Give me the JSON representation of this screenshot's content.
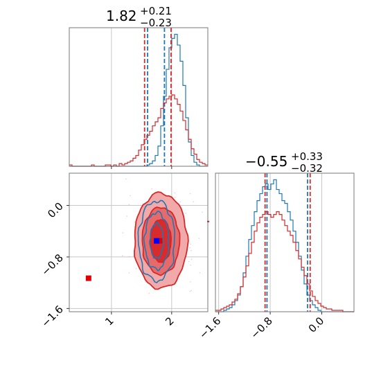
{
  "chart_data": [
    {
      "type": "histogram",
      "panel": "top-left",
      "title": {
        "main": "1.82",
        "sup": "+0.21",
        "sub": "−0.23"
      },
      "xlim": [
        0.3,
        2.6
      ],
      "x_ticks": [
        1,
        2
      ],
      "grid": true,
      "bins": {
        "start": 0.3,
        "width": 0.046
      },
      "series": [
        {
          "name": "blue",
          "color": "#1f77b4",
          "counts": [
            0,
            0,
            0,
            0,
            0,
            0,
            0,
            0,
            0,
            0,
            0,
            0,
            0,
            0,
            0,
            0,
            0,
            0,
            0,
            0,
            0,
            0,
            0,
            0,
            0,
            0,
            0,
            0,
            1,
            2,
            4,
            8,
            15,
            30,
            52,
            72,
            88,
            95,
            98,
            90,
            78,
            60,
            36,
            18,
            8,
            3,
            1,
            0,
            0,
            0
          ],
          "quantile_lines": [
            1.6,
            1.88
          ]
        },
        {
          "name": "red",
          "color": "#d62728",
          "counts": [
            1,
            0,
            0,
            0,
            0,
            0,
            0,
            0,
            1,
            0,
            0,
            0,
            0,
            1,
            1,
            0,
            1,
            0,
            2,
            1,
            2,
            3,
            4,
            6,
            8,
            12,
            16,
            20,
            23,
            26,
            30,
            33,
            36,
            43,
            47,
            50,
            52,
            53,
            50,
            46,
            41,
            34,
            27,
            20,
            13,
            9,
            5,
            3,
            2,
            1
          ],
          "quantile_lines": [
            1.55,
            1.99
          ]
        }
      ]
    },
    {
      "type": "histogram",
      "panel": "bottom-right",
      "title": {
        "main": "−0.55",
        "sup": "+0.33",
        "sub": "−0.32"
      },
      "xlim": [
        -1.65,
        0.5
      ],
      "x_ticks": [
        -1.6,
        -0.8,
        0.0
      ],
      "x_tick_labels": [
        "−1.6",
        "−0.8",
        "0.0"
      ],
      "grid": true,
      "bins": {
        "start": -1.65,
        "width": 0.043
      },
      "series": [
        {
          "name": "blue",
          "color": "#1f77b4",
          "counts": [
            0,
            0,
            0,
            1,
            2,
            3,
            5,
            8,
            12,
            18,
            28,
            40,
            52,
            62,
            72,
            80,
            85,
            90,
            92,
            88,
            92,
            95,
            88,
            85,
            80,
            78,
            72,
            66,
            58,
            50,
            40,
            30,
            20,
            12,
            8,
            5,
            3,
            1,
            0,
            0,
            0,
            0,
            0,
            0,
            0,
            0,
            0,
            0,
            0,
            0
          ],
          "quantile_lines": [
            -0.85,
            -0.22
          ]
        },
        {
          "name": "red",
          "color": "#d62728",
          "counts": [
            1,
            1,
            2,
            3,
            4,
            5,
            7,
            9,
            13,
            18,
            25,
            33,
            42,
            50,
            58,
            64,
            68,
            70,
            72,
            70,
            68,
            70,
            72,
            70,
            66,
            62,
            58,
            55,
            50,
            44,
            38,
            32,
            26,
            20,
            15,
            11,
            8,
            6,
            4,
            3,
            2,
            2,
            1,
            1,
            1,
            1,
            0,
            0,
            0,
            0
          ],
          "quantile_lines": [
            -0.88,
            -0.18
          ]
        }
      ]
    },
    {
      "type": "contour",
      "panel": "bottom-left",
      "xlim": [
        0.3,
        2.6
      ],
      "ylim": [
        -1.65,
        0.5
      ],
      "x_ticks": [
        1,
        2
      ],
      "y_ticks": [
        -1.6,
        -0.8,
        0.0
      ],
      "y_tick_labels": [
        "−1.6",
        "−0.8",
        "0.0"
      ],
      "grid": true,
      "red_center": [
        1.82,
        -0.55
      ],
      "red_levels": [
        [
          0.44,
          0.74
        ],
        [
          0.31,
          0.52
        ],
        [
          0.17,
          0.33
        ]
      ],
      "blue_center": [
        1.75,
        -0.55
      ],
      "blue_levels": [
        [
          0.3,
          0.62
        ],
        [
          0.2,
          0.44
        ],
        [
          0.11,
          0.27
        ]
      ],
      "markers": [
        {
          "name": "red-square-main",
          "x": 1.8,
          "y": -0.55,
          "color": "#e00000"
        },
        {
          "name": "blue-square-main",
          "x": 1.75,
          "y": -0.55,
          "color": "#0000ff"
        },
        {
          "name": "red-square-outlier",
          "x": 0.62,
          "y": -1.13,
          "color": "#e00000"
        }
      ]
    }
  ],
  "colors": {
    "red": "#d62728",
    "blue": "#1f77b4",
    "grid": "#c8c8c8"
  }
}
